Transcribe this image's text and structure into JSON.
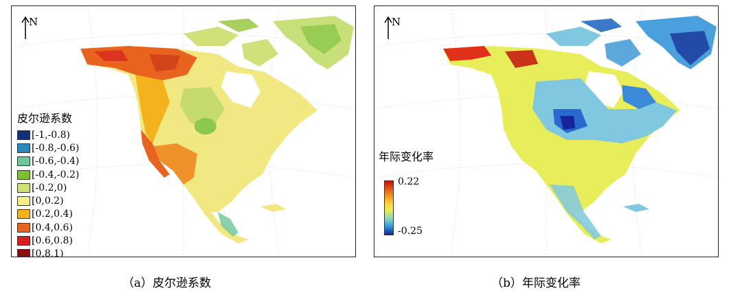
{
  "panel_a": {
    "north_label": "N",
    "legend_title": "皮尔逊系数",
    "legend_items": [
      {
        "label": "[-1,-0.8)",
        "color": "#14307a"
      },
      {
        "label": "[-0.8,-0.6)",
        "color": "#2e87b8"
      },
      {
        "label": "[-0.6,-0.4)",
        "color": "#6cc79a"
      },
      {
        "label": "[-0.4,-0.2)",
        "color": "#7dbf2e"
      },
      {
        "label": "[-0.2,0)",
        "color": "#d2e07a"
      },
      {
        "label": "[0,0.2)",
        "color": "#f5ee8a"
      },
      {
        "label": "[0.2,0.4)",
        "color": "#f4b21c"
      },
      {
        "label": "[0.4,0.6)",
        "color": "#e8641e"
      },
      {
        "label": "[0.6,0.8)",
        "color": "#d61f1f"
      },
      {
        "label": "[0.8,1)",
        "color": "#8a1010"
      }
    ],
    "caption": "（a）皮尔逊系数"
  },
  "panel_b": {
    "north_label": "N",
    "legend_title": "年际变化率",
    "ramp_max": "0.22",
    "ramp_min": "-0.25",
    "ramp_colors": [
      "#c4120e",
      "#fbd83a",
      "#17249a"
    ],
    "caption": "（b）年际变化率"
  }
}
